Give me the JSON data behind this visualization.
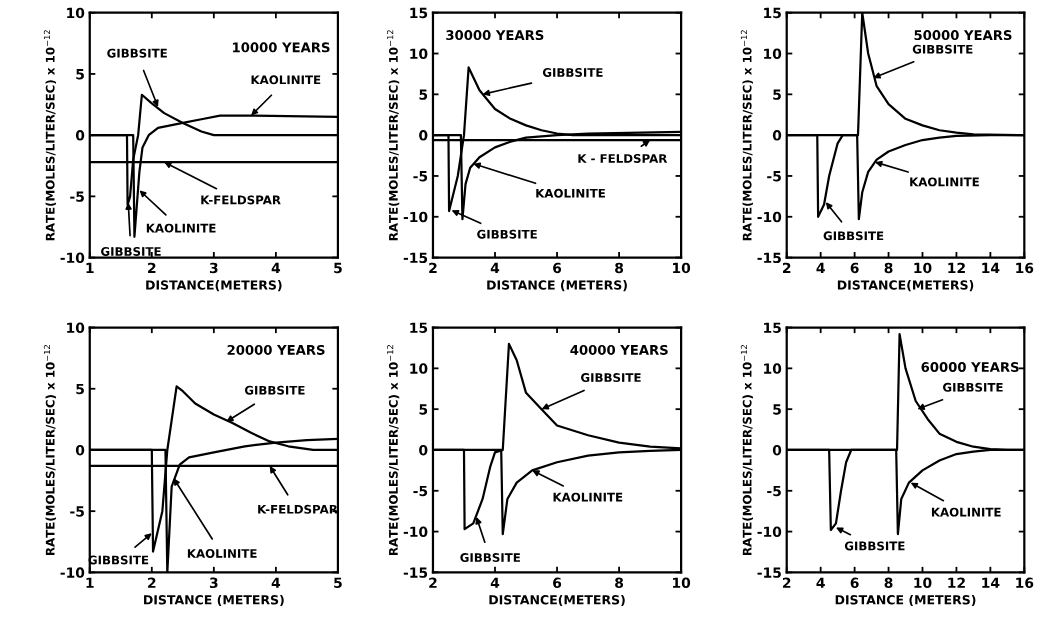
{
  "chart_data": [
    {
      "type": "line",
      "title": "10000 YEARS",
      "xlabel": "DISTANCE(METERS)",
      "ylabel": "RATE(MOLES/LITER/SEC) x 10$^{−12}$",
      "xlim": [
        1,
        5
      ],
      "xticks": [
        1,
        2,
        3,
        4,
        5
      ],
      "ylim": [
        -10,
        10
      ],
      "yticks": [
        -10,
        -5,
        0,
        5,
        10
      ],
      "series": [
        {
          "color": "#000000",
          "x": [
            1,
            1.6,
            1.61,
            1.65,
            1.7,
            1.78,
            1.84,
            2.0,
            2.2,
            2.5,
            2.8,
            3.0,
            5
          ],
          "values": [
            0,
            0,
            -5.7,
            -5,
            -2,
            0,
            3.3,
            2.6,
            1.8,
            1.0,
            0.3,
            0,
            0
          ]
        },
        {
          "color": "#000000",
          "x": [
            1,
            1.7,
            1.72,
            1.8,
            1.85,
            1.95,
            2.1,
            2.5,
            2.8,
            3.1,
            3.5,
            5
          ],
          "values": [
            0,
            0,
            -8.3,
            -3,
            -1,
            0,
            0.6,
            1.0,
            1.3,
            1.6,
            1.6,
            1.5
          ]
        },
        {
          "color": "#000000",
          "x": [
            1,
            5
          ],
          "values": [
            -2.2,
            -2.2
          ]
        }
      ],
      "annotations": [
        {
          "text": "GIBBSITE",
          "x": 2.1,
          "y": 2.3
        },
        {
          "text": "KAOLINITE",
          "x": 3.6,
          "y": 1.6
        },
        {
          "text": "K-FELDSPAR",
          "x": 2.2,
          "y": -2.2
        },
        {
          "text": "KAOLINITE",
          "x": 1.8,
          "y": -4.5
        },
        {
          "text": "GIBBSITE",
          "x": 1.62,
          "y": -5.5
        }
      ]
    },
    {
      "type": "line",
      "title": "30000 YEARS",
      "xlabel": "DISTANCE (METERS)",
      "ylabel": "RATE(MOLES/LITER/SEC) x 10$^{−12}$",
      "xlim": [
        2,
        10
      ],
      "xticks": [
        2,
        4,
        6,
        8,
        10
      ],
      "ylim": [
        -15,
        15
      ],
      "yticks": [
        -15,
        -10,
        -5,
        0,
        5,
        10,
        15
      ],
      "series": [
        {
          "color": "#000000",
          "x": [
            2,
            2.5,
            2.52,
            2.8,
            3.0,
            3.15,
            3.5,
            4,
            4.5,
            5,
            5.5,
            6,
            6.5,
            10
          ],
          "values": [
            0,
            0,
            -9.3,
            -5,
            0,
            8.3,
            5.5,
            3.2,
            2,
            1.2,
            0.6,
            0.2,
            0,
            0
          ]
        },
        {
          "color": "#000000",
          "x": [
            2,
            2.9,
            2.95,
            3.05,
            3.2,
            3.5,
            4,
            4.5,
            5,
            6,
            7,
            10
          ],
          "values": [
            0,
            0,
            -10.3,
            -6,
            -4,
            -2.7,
            -1.5,
            -0.8,
            -0.3,
            0,
            0.2,
            0.4
          ]
        },
        {
          "color": "#000000",
          "x": [
            2,
            10
          ],
          "values": [
            -0.6,
            -0.6
          ]
        }
      ],
      "annotations": [
        {
          "text": "GIBBSITE",
          "x": 3.6,
          "y": 5.0
        },
        {
          "text": "K - FELDSPAR",
          "x": 9.0,
          "y": -0.6
        },
        {
          "text": "KAOLINITE",
          "x": 3.3,
          "y": -3.5
        },
        {
          "text": "GIBBSITE",
          "x": 2.6,
          "y": -9.2
        }
      ]
    },
    {
      "type": "line",
      "title": "50000 YEARS",
      "xlabel": "DISTANCE(METERS)",
      "ylabel": "RATE(MOLES/LITER/SEC) x 10$^{−12}$",
      "xlim": [
        2,
        16
      ],
      "xticks": [
        2,
        4,
        6,
        8,
        10,
        12,
        14,
        16
      ],
      "ylim": [
        -15,
        15
      ],
      "yticks": [
        -15,
        -10,
        -5,
        0,
        5,
        10,
        15
      ],
      "series": [
        {
          "color": "#000000",
          "x": [
            2,
            3.8,
            3.85,
            4.2,
            4.5,
            5.0,
            5.3,
            6.2,
            6.45,
            6.8,
            7.3,
            8,
            9,
            10,
            11,
            12,
            13,
            16
          ],
          "values": [
            0,
            0,
            -10,
            -8.5,
            -5,
            -1,
            0,
            0,
            15,
            10,
            6,
            3.8,
            2,
            1.2,
            0.6,
            0.3,
            0.1,
            0
          ]
        },
        {
          "color": "#000000",
          "x": [
            2,
            6.15,
            6.25,
            6.45,
            6.8,
            7.3,
            8,
            9,
            10,
            11,
            12,
            14,
            16
          ],
          "values": [
            0,
            0,
            -10.3,
            -7,
            -4.5,
            -3,
            -2,
            -1.2,
            -0.6,
            -0.3,
            -0.1,
            0,
            0
          ]
        }
      ],
      "annotations": [
        {
          "text": "GIBBSITE",
          "x": 7.1,
          "y": 7.0
        },
        {
          "text": "KAOLINITE",
          "x": 7.2,
          "y": -3.3
        },
        {
          "text": "GIBBSITE",
          "x": 4.3,
          "y": -8.2
        }
      ]
    },
    {
      "type": "line",
      "title": "20000 YEARS",
      "xlabel": "DISTANCE (METERS)",
      "ylabel": "RATE(MOLES/LITER/SEC) x 10$^{−12}$",
      "xlim": [
        1,
        5
      ],
      "xticks": [
        1,
        2,
        3,
        4,
        5
      ],
      "ylim": [
        -10,
        10
      ],
      "yticks": [
        -10,
        -5,
        0,
        5,
        10
      ],
      "series": [
        {
          "color": "#000000",
          "x": [
            1,
            2.0,
            2.02,
            2.17,
            2.25,
            2.4,
            2.5,
            2.7,
            3.0,
            3.3,
            3.6,
            3.9,
            4.2,
            4.6,
            5
          ],
          "values": [
            0,
            0,
            -8.3,
            -5,
            0,
            5.2,
            4.8,
            3.8,
            2.9,
            2.2,
            1.4,
            0.7,
            0.3,
            0,
            0
          ]
        },
        {
          "color": "#000000",
          "x": [
            1,
            2.22,
            2.25,
            2.32,
            2.45,
            2.6,
            3.0,
            3.5,
            4,
            4.5,
            5
          ],
          "values": [
            0,
            0,
            -10,
            -3,
            -1.2,
            -0.6,
            -0.2,
            0.3,
            0.6,
            0.8,
            0.9
          ]
        },
        {
          "color": "#000000",
          "x": [
            1,
            5
          ],
          "values": [
            -1.3,
            -1.3
          ]
        }
      ],
      "annotations": [
        {
          "text": "GIBBSITE",
          "x": 3.2,
          "y": 2.3
        },
        {
          "text": "K-FELDSPAR",
          "x": 3.9,
          "y": -1.3
        },
        {
          "text": "KAOLINITE",
          "x": 2.35,
          "y": -2.3
        },
        {
          "text": "GIBBSITE",
          "x": 2.0,
          "y": -6.8
        }
      ]
    },
    {
      "type": "line",
      "title": "40000 YEARS",
      "xlabel": "DISTANCE(METERS)",
      "ylabel": "RATE(MOLES/LITER/SEC) x 10$^{−12}$",
      "xlim": [
        2,
        10
      ],
      "xticks": [
        2,
        4,
        6,
        8,
        10
      ],
      "ylim": [
        -15,
        15
      ],
      "yticks": [
        -15,
        -10,
        -5,
        0,
        5,
        10,
        15
      ],
      "series": [
        {
          "color": "#000000",
          "x": [
            2,
            3.0,
            3.02,
            3.3,
            3.6,
            3.85,
            4.0,
            4.25,
            4.45,
            4.7,
            5.0,
            5.5,
            6,
            7,
            8,
            9,
            10
          ],
          "values": [
            0,
            0,
            -9.7,
            -9,
            -6,
            -2,
            -0.3,
            0,
            13,
            11,
            7,
            5,
            3,
            1.8,
            0.9,
            0.4,
            0.2
          ]
        },
        {
          "color": "#000000",
          "x": [
            2,
            4.2,
            4.25,
            4.4,
            4.7,
            5.2,
            6,
            7,
            8,
            9,
            10
          ],
          "values": [
            0,
            0,
            -10.3,
            -6,
            -4,
            -2.5,
            -1.5,
            -0.7,
            -0.3,
            -0.1,
            0
          ]
        }
      ],
      "annotations": [
        {
          "text": "GIBBSITE",
          "x": 5.5,
          "y": 5
        },
        {
          "text": "KAOLINITE",
          "x": 5.2,
          "y": -2.5
        },
        {
          "text": "GIBBSITE",
          "x": 3.4,
          "y": -8.2
        }
      ]
    },
    {
      "type": "line",
      "title": "60000 YEARS",
      "xlabel": "DISTANCE (METERS)",
      "ylabel": "RATE(MOLES/LITER/SEC) x 10$^{−12}$",
      "xlim": [
        2,
        16
      ],
      "xticks": [
        2,
        4,
        6,
        8,
        10,
        12,
        14,
        16
      ],
      "ylim": [
        -15,
        15
      ],
      "yticks": [
        -15,
        -10,
        -5,
        0,
        5,
        10,
        15
      ],
      "series": [
        {
          "color": "#000000",
          "x": [
            2,
            4.5,
            4.6,
            4.9,
            5.2,
            5.5,
            5.8,
            8.5,
            8.65,
            9.0,
            9.6,
            10.3,
            11,
            12,
            13,
            14,
            15,
            16
          ],
          "values": [
            0,
            0,
            -9.8,
            -9,
            -5,
            -1.5,
            0,
            0,
            14.2,
            10,
            6,
            3.8,
            2,
            1,
            0.4,
            0.1,
            0,
            0
          ]
        },
        {
          "color": "#000000",
          "x": [
            2,
            8.45,
            8.55,
            8.75,
            9.2,
            10,
            11,
            12,
            13,
            14,
            16
          ],
          "values": [
            0,
            0,
            -10.3,
            -6,
            -4,
            -2.5,
            -1.3,
            -0.5,
            -0.2,
            0,
            0
          ]
        }
      ],
      "annotations": [
        {
          "text": "GIBBSITE",
          "x": 9.7,
          "y": 5.0
        },
        {
          "text": "KAOLINITE",
          "x": 9.3,
          "y": -4.0
        },
        {
          "text": "GIBBSITE",
          "x": 4.9,
          "y": -9.5
        }
      ]
    }
  ]
}
